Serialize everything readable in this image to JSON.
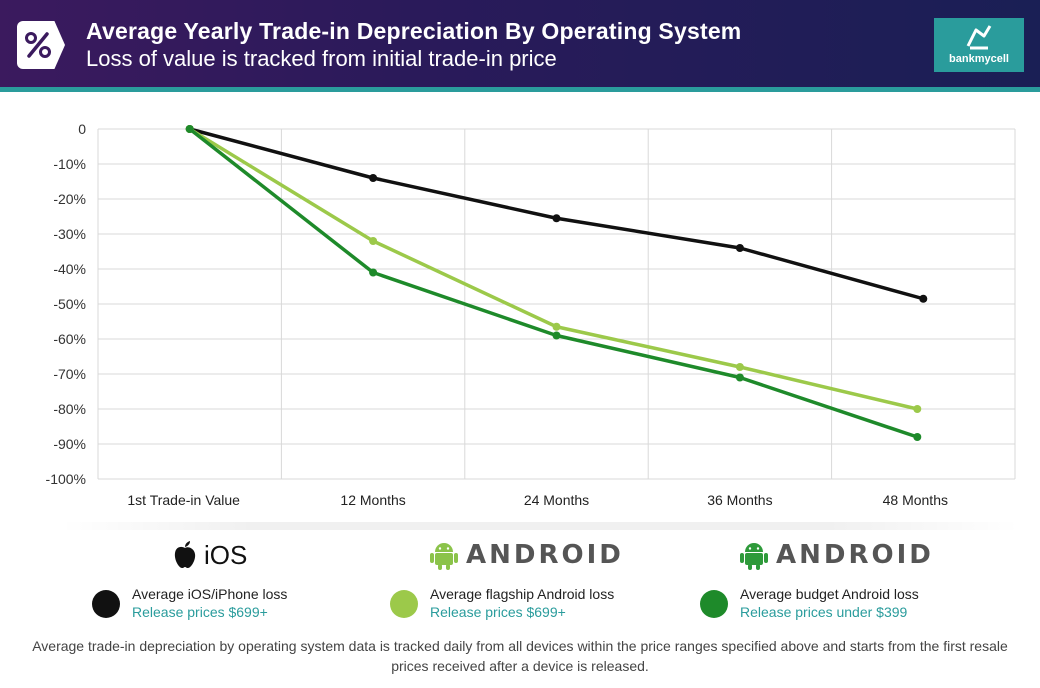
{
  "header": {
    "title": "Average Yearly Trade-in Depreciation By Operating System",
    "subtitle": "Loss of value is tracked from initial trade-in price",
    "logo_text": "bankmycell",
    "accent": "#2a9c9c"
  },
  "chart_data": {
    "type": "line",
    "categories": [
      "1st Trade-in Value",
      "12 Months",
      "24 Months",
      "36 Months",
      "48 Months"
    ],
    "ylim": [
      -100,
      0
    ],
    "yticks": [
      0,
      -10,
      -20,
      -30,
      -40,
      -50,
      -60,
      -70,
      -80,
      -90,
      -100
    ],
    "ytick_labels": [
      "0",
      "-10%",
      "-20%",
      "-30%",
      "-40%",
      "-50%",
      "-60%",
      "-70%",
      "-80%",
      "-90%",
      "-100%"
    ],
    "grid": true,
    "series": [
      {
        "name": "Average iOS/iPhone loss",
        "color": "#111111",
        "values": [
          0,
          -14,
          -25.5,
          -34,
          -48.5
        ]
      },
      {
        "name": "Average flagship Android loss",
        "color": "#9cc94a",
        "values": [
          0,
          -32,
          -56.5,
          -68,
          -80
        ]
      },
      {
        "name": "Average budget Android loss",
        "color": "#1e8a2a",
        "values": [
          0,
          -41,
          -59,
          -71,
          -88
        ]
      }
    ]
  },
  "legend": {
    "os_ios": "iOS",
    "os_android_1": "ANDROID",
    "os_android_2": "ANDROID",
    "items": [
      {
        "label": "Average iOS/iPhone loss",
        "sub": "Release prices $699+",
        "color": "#111111"
      },
      {
        "label": "Average flagship Android loss",
        "sub": "Release prices $699+",
        "color": "#9cc94a"
      },
      {
        "label": "Average budget Android loss",
        "sub": "Release prices under $399",
        "color": "#1e8a2a"
      }
    ]
  },
  "footnote": "Average trade-in depreciation by operating system data is tracked daily from all devices within the price ranges specified above and starts from the first resale prices received after a device is released."
}
